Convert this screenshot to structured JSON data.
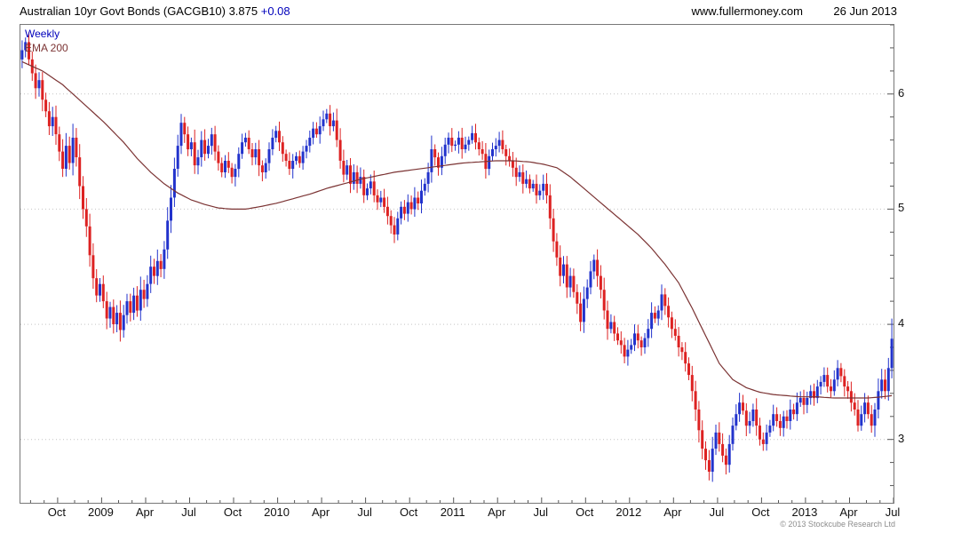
{
  "header": {
    "title": "Australian 10yr Govt Bonds (GACGB10)",
    "last_price": "3.875",
    "change": "+0.08",
    "website": "www.fullermoney.com",
    "date": "26 Jun 2013"
  },
  "legend": {
    "timeframe": "Weekly",
    "overlay": "EMA 200"
  },
  "footer": {
    "copyright": "© 2013 Stockcube Research Ltd"
  },
  "chart_data": {
    "type": "candlestick",
    "instrument": "Australian 10yr Govt Bonds",
    "ticker": "GACGB10",
    "interval": "weekly",
    "overlay": "EMA 200",
    "ylim": [
      2.45,
      6.6
    ],
    "y_ticks": [
      3,
      4,
      5,
      6
    ],
    "y_minor_step": 0.2,
    "weeks": 258,
    "x_labels": [
      {
        "label": "Oct",
        "week": 11
      },
      {
        "label": "2009",
        "week": 24
      },
      {
        "label": "Apr",
        "week": 37
      },
      {
        "label": "Jul",
        "week": 50
      },
      {
        "label": "Oct",
        "week": 63
      },
      {
        "label": "2010",
        "week": 76
      },
      {
        "label": "Apr",
        "week": 89
      },
      {
        "label": "Jul",
        "week": 102
      },
      {
        "label": "Oct",
        "week": 115
      },
      {
        "label": "2011",
        "week": 128
      },
      {
        "label": "Apr",
        "week": 141
      },
      {
        "label": "Jul",
        "week": 154
      },
      {
        "label": "Oct",
        "week": 167
      },
      {
        "label": "2012",
        "week": 180
      },
      {
        "label": "Apr",
        "week": 193
      },
      {
        "label": "Jul",
        "week": 206
      },
      {
        "label": "Oct",
        "week": 219
      },
      {
        "label": "2013",
        "week": 232
      },
      {
        "label": "Apr",
        "week": 245
      },
      {
        "label": "Jul",
        "week": 258
      }
    ],
    "first_open": 6.3,
    "last_week_high": 4.05,
    "closes": [
      6.38,
      6.45,
      6.3,
      6.18,
      6.05,
      6.12,
      5.95,
      5.85,
      5.72,
      5.8,
      5.65,
      5.5,
      5.35,
      5.55,
      5.4,
      5.62,
      5.45,
      5.2,
      5.0,
      4.85,
      4.6,
      4.4,
      4.25,
      4.35,
      4.2,
      4.05,
      4.15,
      4.0,
      4.1,
      3.95,
      4.08,
      4.2,
      4.1,
      4.25,
      4.12,
      4.3,
      4.22,
      4.35,
      4.5,
      4.42,
      4.55,
      4.48,
      4.65,
      4.9,
      5.1,
      5.35,
      5.55,
      5.75,
      5.65,
      5.52,
      5.58,
      5.38,
      5.45,
      5.6,
      5.48,
      5.55,
      5.65,
      5.5,
      5.4,
      5.32,
      5.42,
      5.36,
      5.28,
      5.35,
      5.48,
      5.58,
      5.62,
      5.52,
      5.45,
      5.52,
      5.38,
      5.32,
      5.4,
      5.52,
      5.62,
      5.68,
      5.58,
      5.48,
      5.42,
      5.35,
      5.42,
      5.46,
      5.4,
      5.5,
      5.55,
      5.62,
      5.7,
      5.65,
      5.72,
      5.78,
      5.83,
      5.72,
      5.77,
      5.6,
      5.42,
      5.3,
      5.38,
      5.22,
      5.32,
      5.22,
      5.28,
      5.12,
      5.18,
      5.24,
      5.12,
      5.06,
      5.1,
      5.02,
      4.94,
      4.86,
      4.78,
      4.92,
      5.02,
      4.96,
      5.06,
      5.0,
      5.1,
      5.05,
      5.16,
      5.22,
      5.32,
      5.52,
      5.45,
      5.36,
      5.46,
      5.56,
      5.62,
      5.55,
      5.56,
      5.62,
      5.52,
      5.56,
      5.6,
      5.66,
      5.58,
      5.52,
      5.48,
      5.35,
      5.46,
      5.52,
      5.55,
      5.6,
      5.52,
      5.46,
      5.42,
      5.36,
      5.28,
      5.32,
      5.22,
      5.26,
      5.18,
      5.22,
      5.12,
      5.16,
      5.22,
      5.12,
      4.92,
      4.72,
      4.58,
      4.42,
      4.52,
      4.32,
      4.42,
      4.28,
      4.18,
      4.02,
      4.22,
      4.32,
      4.46,
      4.56,
      4.42,
      4.3,
      4.12,
      3.96,
      4.02,
      3.92,
      3.86,
      3.82,
      3.72,
      3.78,
      3.82,
      3.92,
      3.86,
      3.8,
      3.88,
      3.96,
      4.1,
      4.05,
      4.12,
      4.26,
      4.16,
      4.06,
      3.96,
      3.9,
      3.8,
      3.76,
      3.66,
      3.56,
      3.42,
      3.26,
      3.08,
      2.92,
      2.82,
      2.72,
      2.92,
      3.06,
      2.96,
      2.86,
      2.78,
      2.96,
      3.12,
      3.22,
      3.32,
      3.25,
      3.12,
      3.16,
      3.26,
      3.12,
      3.0,
      2.96,
      3.06,
      3.12,
      3.22,
      3.16,
      3.1,
      3.2,
      3.16,
      3.26,
      3.22,
      3.32,
      3.36,
      3.3,
      3.36,
      3.42,
      3.36,
      3.46,
      3.5,
      3.56,
      3.46,
      3.42,
      3.52,
      3.62,
      3.55,
      3.46,
      3.42,
      3.32,
      3.26,
      3.12,
      3.22,
      3.32,
      3.22,
      3.12,
      3.26,
      3.42,
      3.52,
      3.42,
      3.62,
      3.875
    ],
    "ema200": [
      [
        0,
        6.28
      ],
      [
        6,
        6.2
      ],
      [
        12,
        6.08
      ],
      [
        18,
        5.92
      ],
      [
        24,
        5.76
      ],
      [
        30,
        5.58
      ],
      [
        34,
        5.44
      ],
      [
        38,
        5.32
      ],
      [
        42,
        5.22
      ],
      [
        46,
        5.14
      ],
      [
        50,
        5.08
      ],
      [
        54,
        5.04
      ],
      [
        58,
        5.01
      ],
      [
        62,
        5.0
      ],
      [
        66,
        5.0
      ],
      [
        70,
        5.02
      ],
      [
        75,
        5.05
      ],
      [
        80,
        5.09
      ],
      [
        85,
        5.13
      ],
      [
        90,
        5.18
      ],
      [
        95,
        5.22
      ],
      [
        100,
        5.26
      ],
      [
        105,
        5.29
      ],
      [
        110,
        5.32
      ],
      [
        115,
        5.34
      ],
      [
        120,
        5.36
      ],
      [
        125,
        5.38
      ],
      [
        130,
        5.4
      ],
      [
        135,
        5.41
      ],
      [
        140,
        5.42
      ],
      [
        145,
        5.42
      ],
      [
        150,
        5.41
      ],
      [
        154,
        5.39
      ],
      [
        158,
        5.36
      ],
      [
        162,
        5.28
      ],
      [
        166,
        5.18
      ],
      [
        170,
        5.08
      ],
      [
        174,
        4.98
      ],
      [
        178,
        4.88
      ],
      [
        182,
        4.78
      ],
      [
        186,
        4.66
      ],
      [
        190,
        4.52
      ],
      [
        194,
        4.36
      ],
      [
        198,
        4.14
      ],
      [
        202,
        3.9
      ],
      [
        206,
        3.66
      ],
      [
        210,
        3.52
      ],
      [
        214,
        3.45
      ],
      [
        218,
        3.41
      ],
      [
        222,
        3.39
      ],
      [
        226,
        3.38
      ],
      [
        230,
        3.37
      ],
      [
        235,
        3.37
      ],
      [
        240,
        3.36
      ],
      [
        245,
        3.36
      ],
      [
        250,
        3.36
      ],
      [
        254,
        3.37
      ],
      [
        257,
        3.38
      ]
    ],
    "colors": {
      "up": "#2233cc",
      "down": "#dd2222",
      "ema": "#7b3333",
      "grid": "#c4c4c4",
      "axis": "#787878",
      "tick": "#555555",
      "text": "#000000",
      "accent_blue": "#0000bb",
      "copyright": "#8c8c8c"
    }
  }
}
